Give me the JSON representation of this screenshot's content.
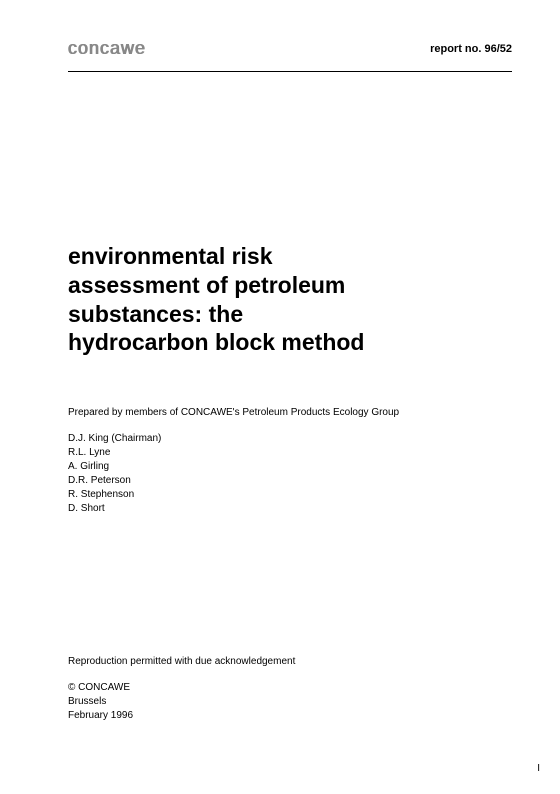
{
  "header": {
    "logo": "concawe",
    "report_no": "report no. 96/52"
  },
  "title": "environmental risk assessment of petroleum substances: the hydrocarbon block method",
  "prepared_by": "Prepared by members of CONCAWE's Petroleum Products Ecology Group",
  "authors": [
    "D.J. King (Chairman)",
    "R.L. Lyne",
    "A. Girling",
    "D.R. Peterson",
    "R. Stephenson",
    "D. Short"
  ],
  "reproduction": "Reproduction permitted with due acknowledgement",
  "copyright": {
    "line1": "© CONCAWE",
    "line2": "Brussels",
    "line3": "February 1996"
  },
  "page_number": "I"
}
